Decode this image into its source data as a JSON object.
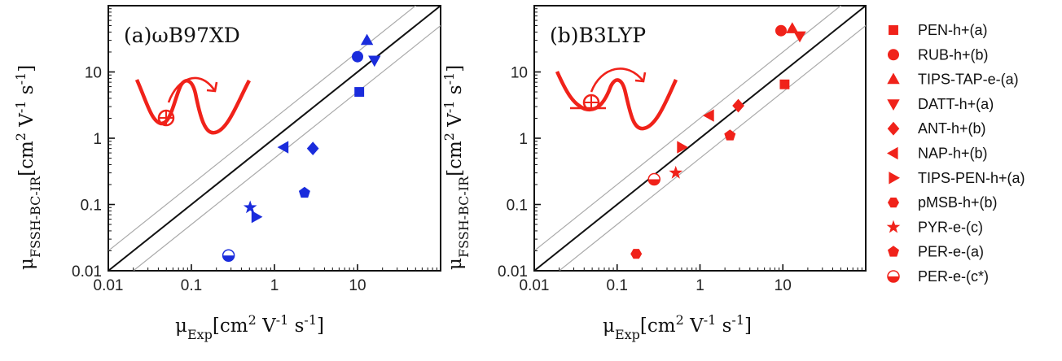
{
  "chart_data": [
    {
      "type": "scatter",
      "panel_label": "(a)ωB97XD",
      "color": "#1a2cdc",
      "scale": "log-log",
      "xlim": [
        0.01,
        100
      ],
      "ylim": [
        0.01,
        100
      ],
      "x_ticks": [
        "0.01",
        "0.1",
        "1",
        "10"
      ],
      "y_ticks": [
        "0.01",
        "0.1",
        "1",
        "10"
      ],
      "xlabel": {
        "sym": "μ",
        "sub": "Exp",
        "unit": "[cm",
        "p1": "2",
        "mid": " V",
        "p2": "-1",
        "end": " s",
        "p3": "-1",
        "close": "]"
      },
      "ylabel": {
        "sym": "μ",
        "sub": "FSSH-BC-IR",
        "unit": "[cm",
        "p1": "2",
        "mid": " V",
        "p2": "-1",
        "end": " s",
        "p3": "-1",
        "close": "]"
      },
      "reference_lines": [
        "y = x",
        "y = 2x",
        "y = x/2"
      ],
      "points": [
        {
          "series": "PEN-h+(a)",
          "marker": "square",
          "x": 10.5,
          "y": 5.0
        },
        {
          "series": "RUB-h+(b)",
          "marker": "circle",
          "x": 10.0,
          "y": 17.0
        },
        {
          "series": "TIPS-TAP-e-(a)",
          "marker": "triangle-up",
          "x": 13.0,
          "y": 30.0
        },
        {
          "series": "DATT-h+(a)",
          "marker": "triangle-down",
          "x": 16.0,
          "y": 15.0
        },
        {
          "series": "ANT-h+(b)",
          "marker": "diamond",
          "x": 2.9,
          "y": 0.7
        },
        {
          "series": "NAP-h+(b)",
          "marker": "triangle-left",
          "x": 1.3,
          "y": 0.73
        },
        {
          "series": "TIPS-PEN-h+(a)",
          "marker": "triangle-right",
          "x": 0.6,
          "y": 0.065
        },
        {
          "series": "PYR-e-(c)",
          "marker": "star",
          "x": 0.51,
          "y": 0.09
        },
        {
          "series": "PER-e-(a)",
          "marker": "pentagon",
          "x": 2.3,
          "y": 0.15
        },
        {
          "series": "PER-e-(c*)",
          "marker": "half-circle",
          "x": 0.28,
          "y": 0.017
        }
      ]
    },
    {
      "type": "scatter",
      "panel_label": "(b)B3LYP",
      "color": "#f0221a",
      "scale": "log-log",
      "xlim": [
        0.01,
        100
      ],
      "ylim": [
        0.01,
        100
      ],
      "x_ticks": [
        "0.01",
        "0.1",
        "1",
        "10"
      ],
      "y_ticks": [
        "0.01",
        "0.1",
        "1",
        "10"
      ],
      "xlabel": {
        "sym": "μ",
        "sub": "Exp",
        "unit": "[cm",
        "p1": "2",
        "mid": " V",
        "p2": "-1",
        "end": " s",
        "p3": "-1",
        "close": "]"
      },
      "ylabel": {
        "sym": "μ",
        "sub": "FSSH-BC-IR",
        "unit": "[cm",
        "p1": "2",
        "mid": " V",
        "p2": "-1",
        "end": " s",
        "p3": "-1",
        "close": "]"
      },
      "reference_lines": [
        "y = x",
        "y = 2x",
        "y = x/2"
      ],
      "points": [
        {
          "series": "PEN-h+(a)",
          "marker": "square",
          "x": 10.5,
          "y": 6.5
        },
        {
          "series": "RUB-h+(b)",
          "marker": "circle",
          "x": 9.5,
          "y": 42.0
        },
        {
          "series": "TIPS-TAP-e-(a)",
          "marker": "triangle-up",
          "x": 13.0,
          "y": 45.0
        },
        {
          "series": "DATT-h+(a)",
          "marker": "triangle-down",
          "x": 16.0,
          "y": 35.0
        },
        {
          "series": "ANT-h+(b)",
          "marker": "diamond",
          "x": 2.9,
          "y": 3.1
        },
        {
          "series": "NAP-h+(b)",
          "marker": "triangle-left",
          "x": 1.3,
          "y": 2.2
        },
        {
          "series": "TIPS-PEN-h+(a)",
          "marker": "triangle-right",
          "x": 0.6,
          "y": 0.73
        },
        {
          "series": "pMSB-h+(b)",
          "marker": "hexagon",
          "x": 0.17,
          "y": 0.018
        },
        {
          "series": "PYR-e-(c)",
          "marker": "star",
          "x": 0.51,
          "y": 0.3
        },
        {
          "series": "PER-e-(a)",
          "marker": "pentagon",
          "x": 2.3,
          "y": 1.1
        },
        {
          "series": "PER-e-(c*)",
          "marker": "half-circle",
          "x": 0.28,
          "y": 0.24
        }
      ]
    }
  ],
  "legend": {
    "color": "#f0221a",
    "placement": "right",
    "entries": [
      {
        "label": "PEN-h+(a)",
        "marker": "square"
      },
      {
        "label": "RUB-h+(b)",
        "marker": "circle"
      },
      {
        "label": "TIPS-TAP-e-(a)",
        "marker": "triangle-up"
      },
      {
        "label": "DATT-h+(a)",
        "marker": "triangle-down"
      },
      {
        "label": "ANT-h+(b)",
        "marker": "diamond"
      },
      {
        "label": "NAP-h+(b)",
        "marker": "triangle-left"
      },
      {
        "label": "TIPS-PEN-h+(a)",
        "marker": "triangle-right"
      },
      {
        "label": "pMSB-h+(b)",
        "marker": "hexagon"
      },
      {
        "label": "PYR-e-(c)",
        "marker": "star"
      },
      {
        "label": "PER-e-(a)",
        "marker": "pentagon"
      },
      {
        "label": "PER-e-(c*)",
        "marker": "half-circle"
      }
    ]
  }
}
